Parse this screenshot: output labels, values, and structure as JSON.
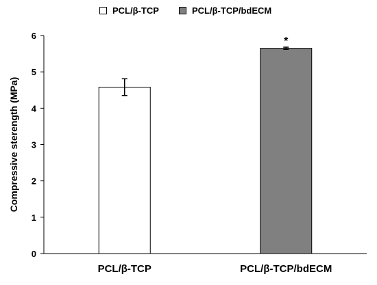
{
  "chart_data": {
    "type": "bar",
    "categories": [
      "PCL/β-TCP",
      "PCL/β-TCP/bdECM"
    ],
    "series": [
      {
        "name": "",
        "values": [
          4.58,
          5.65
        ],
        "errors": [
          0.23,
          0.03
        ],
        "colors": [
          "#ffffff",
          "#808080"
        ]
      }
    ],
    "legend": {
      "placement": "top-center",
      "entries": [
        {
          "label": "PCL/β-TCP",
          "color": "#ffffff"
        },
        {
          "label": "PCL/β-TCP/bdECM",
          "color": "#808080"
        }
      ]
    },
    "annotations": [
      {
        "category": "PCL/β-TCP/bdECM",
        "text": "*"
      }
    ],
    "title": "",
    "xlabel": "",
    "ylabel": "Compressive sterength (MPa)",
    "ylim": [
      0,
      6
    ],
    "yticks": [
      "0",
      "1",
      "2",
      "3",
      "4",
      "5",
      "6"
    ],
    "grid": false
  }
}
